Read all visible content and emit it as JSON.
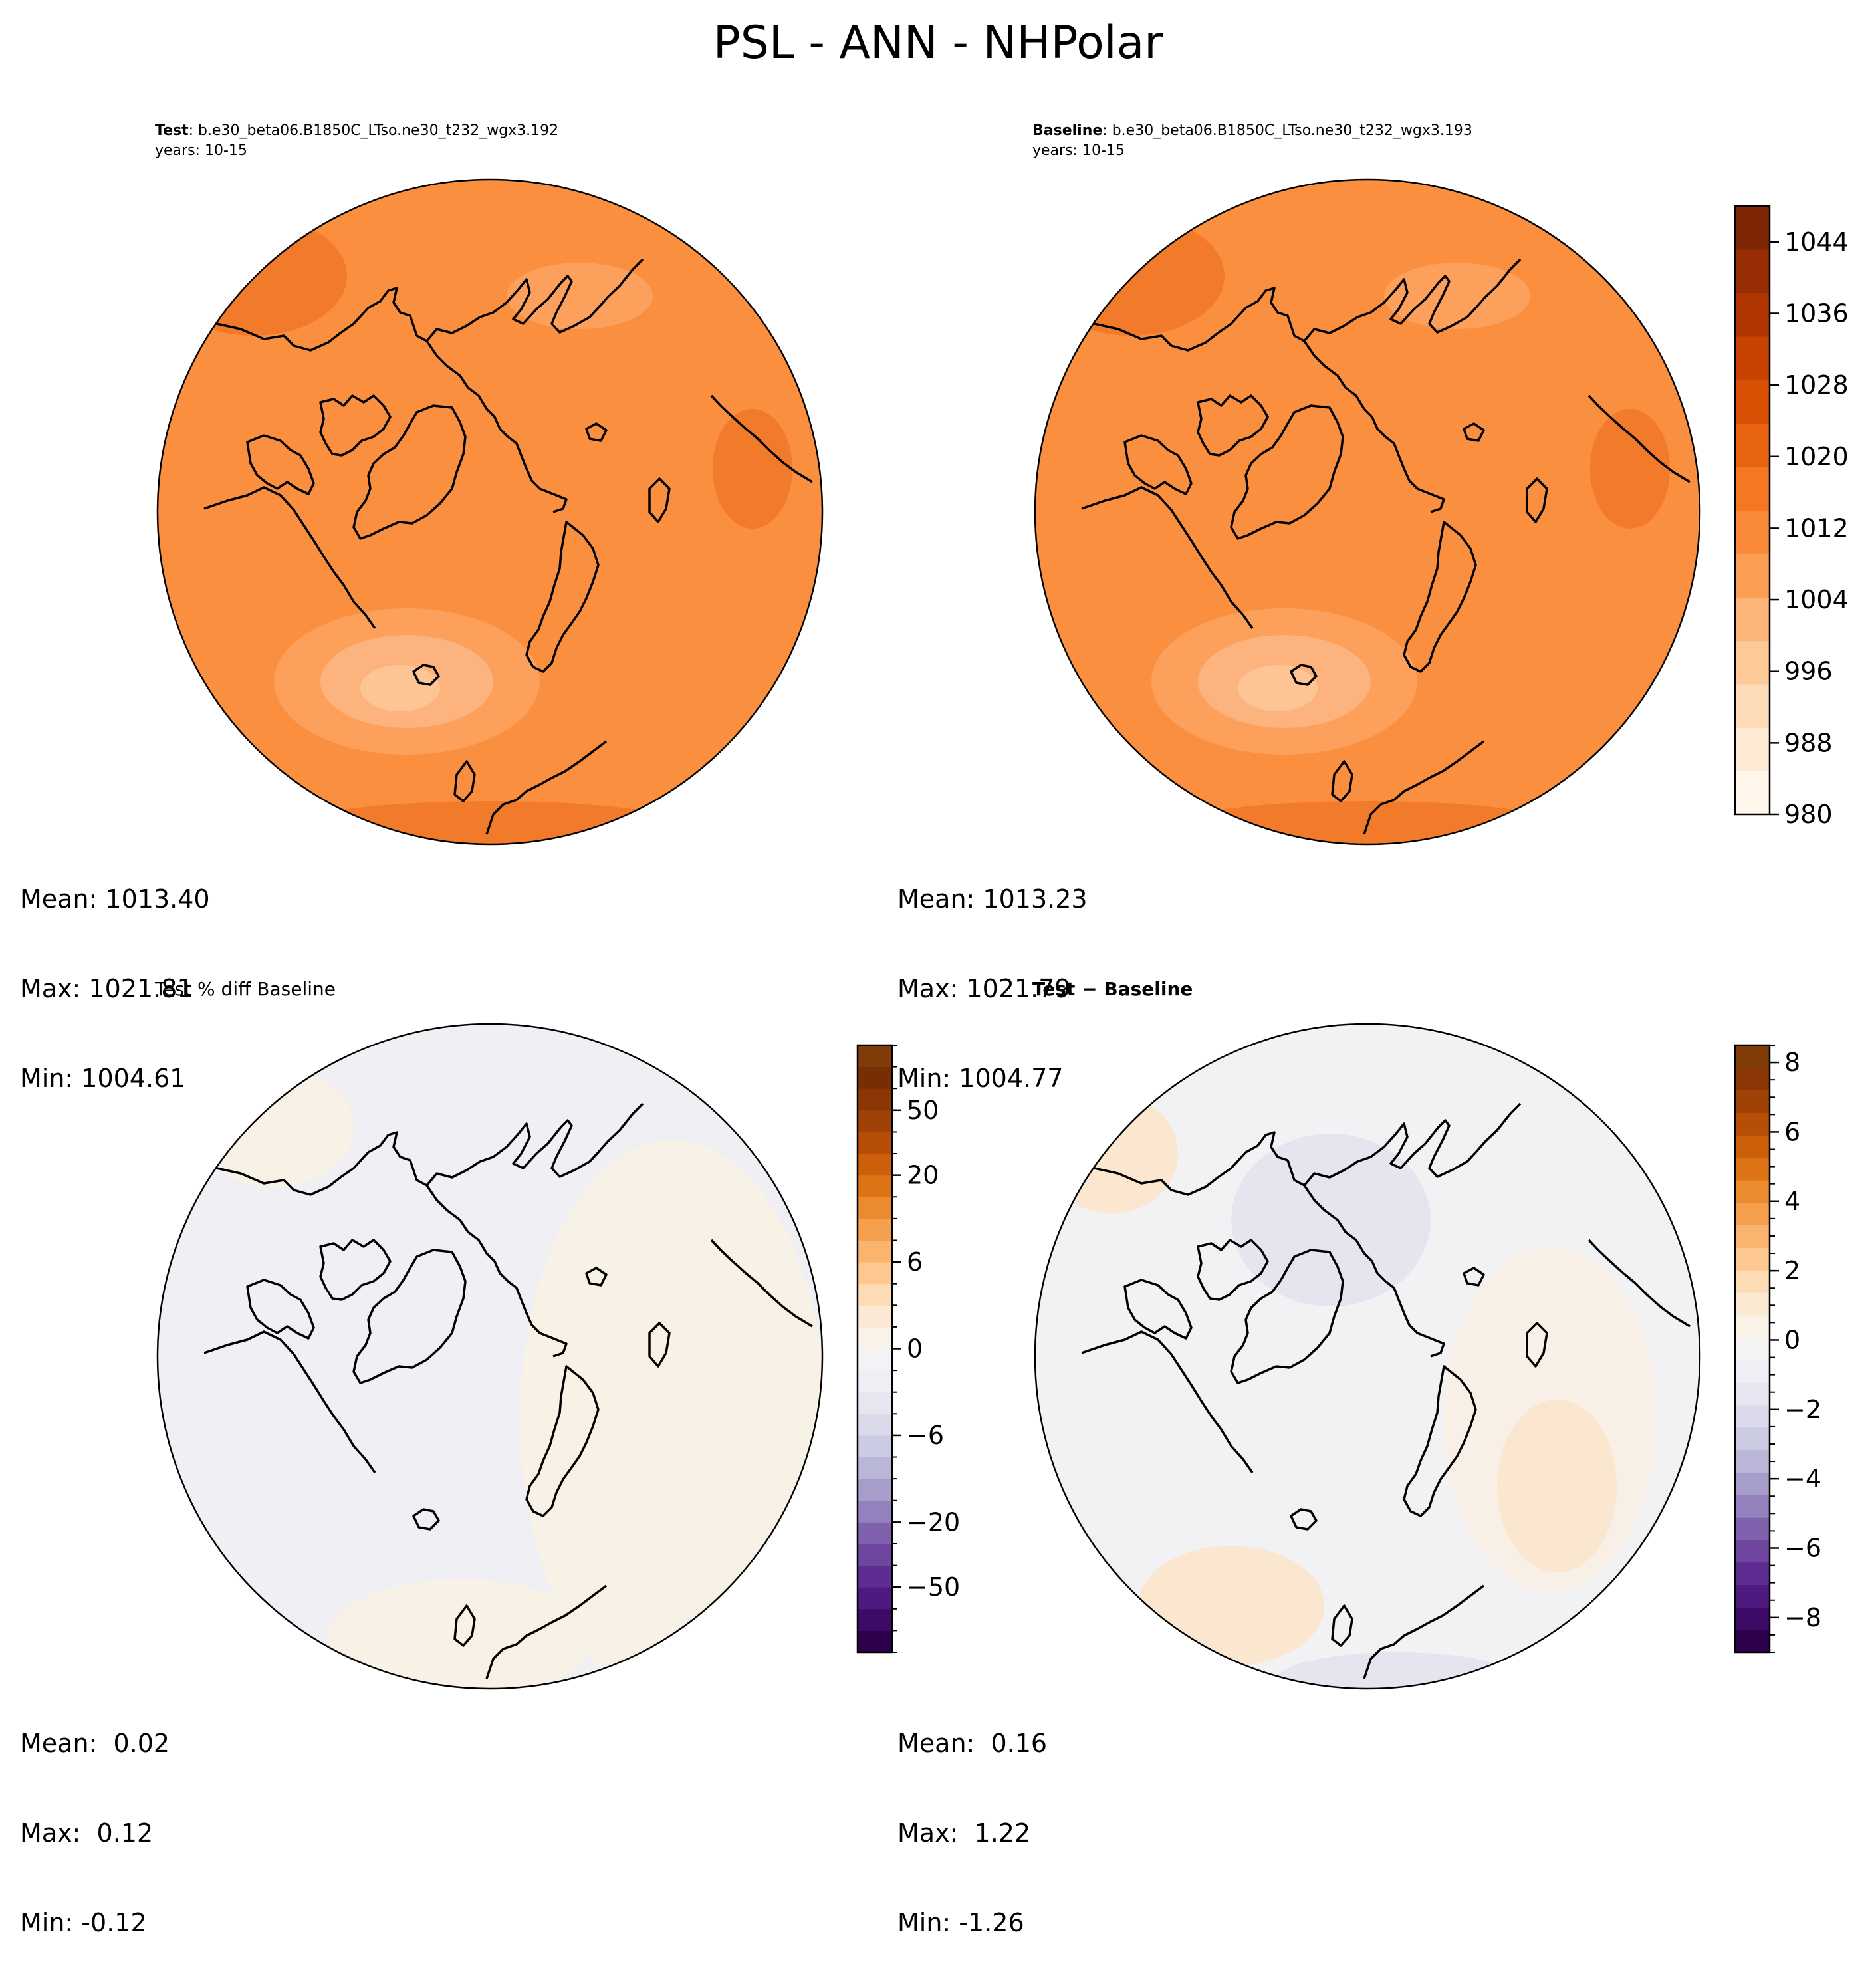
{
  "figure": {
    "title": "PSL - ANN - NHPolar"
  },
  "panels": [
    {
      "id": "test",
      "label_bold": "Test",
      "label_rest": ": b.e30_beta06.B1850C_LTso.ne30_t232_wgx3.192",
      "years": "years: 10-15",
      "stats": [
        "Mean: 1013.40",
        "Max: 1021.81",
        "Min: 1004.61"
      ],
      "fill_color": "#f98f3f",
      "region_colors": [
        "#f27a2b",
        "#fca05c",
        "#fdb37d",
        "#fdc593"
      ]
    },
    {
      "id": "baseline",
      "label_bold": "Baseline",
      "label_rest": ": b.e30_beta06.B1850C_LTso.ne30_t232_wgx3.193",
      "years": "years: 10-15",
      "stats": [
        "Mean: 1013.23",
        "Max: 1021.79",
        "Min: 1004.77"
      ],
      "fill_color": "#f98f3f",
      "region_colors": [
        "#f27a2b",
        "#fca05c",
        "#fdb37d",
        "#fdc593"
      ]
    },
    {
      "id": "pctdiff",
      "subtitle": "Test % diff Baseline",
      "stats": [
        "Mean:  0.02",
        "Max:  0.12",
        "Min: -0.12"
      ],
      "fill_color": "#f0f0f4",
      "region_colors": [
        "#f8f1e6",
        "#eeeef4"
      ]
    },
    {
      "id": "diff",
      "subtitle_bold": "Test − Baseline",
      "stats": [
        "Mean:  0.16",
        "Max:  1.22",
        "Min: -1.26"
      ],
      "fill_color": "#f2f2f5",
      "region_colors": [
        "#fbe7cf",
        "#e6e5ef",
        "#f8f0e6"
      ]
    }
  ],
  "colorbars": [
    {
      "id": "abs",
      "min": 980,
      "max": 1048,
      "ticks": [
        980,
        988,
        996,
        1004,
        1012,
        1020,
        1028,
        1036,
        1044
      ],
      "colors": [
        "#fff5eb",
        "#fee9d5",
        "#fddbb9",
        "#fdc997",
        "#fdb477",
        "#fd9e55",
        "#f98a3a",
        "#f57722",
        "#e96410",
        "#da5005",
        "#c84202",
        "#b13702",
        "#982d03",
        "#7f2704"
      ]
    },
    {
      "id": "pct",
      "levels": [
        -80,
        -70,
        -60,
        -50,
        -40,
        -30,
        -20,
        -15,
        -10,
        -8,
        -6,
        -4,
        -2,
        -1,
        0,
        1,
        2,
        4,
        6,
        8,
        10,
        15,
        20,
        30,
        40,
        50,
        60,
        70,
        80
      ],
      "ticks": [
        -50,
        -20,
        -6,
        0,
        6,
        20,
        50
      ],
      "colors": [
        "#2d004b",
        "#3d0b67",
        "#4e1a7f",
        "#5e2d91",
        "#6e459f",
        "#8061ad",
        "#9381bd",
        "#a69dca",
        "#b9b6d8",
        "#cbcbe3",
        "#dbdaeb",
        "#e7e6f0",
        "#efeef4",
        "#f3f2f5",
        "#f8f2e9",
        "#fbe9d3",
        "#fddbb5",
        "#fdc88f",
        "#fbb46d",
        "#f5a04e",
        "#eb8a2f",
        "#dc7416",
        "#cb5f0a",
        "#b74e07",
        "#a04106",
        "#8b3705",
        "#772e05",
        "#7f3b08"
      ]
    },
    {
      "id": "diff",
      "min": -9,
      "max": 8.5,
      "ticks": [
        -8,
        -6,
        -4,
        -2,
        0,
        2,
        4,
        6,
        8
      ],
      "colors": [
        "#2d004b",
        "#3d0b67",
        "#4e1a7f",
        "#5e2d91",
        "#6e459f",
        "#8061ad",
        "#9381bd",
        "#a69dca",
        "#b9b6d8",
        "#cbcbe3",
        "#dbdaeb",
        "#e7e6f0",
        "#efeef4",
        "#f3f2f5",
        "#f8f2e9",
        "#fbe9d3",
        "#fddbb5",
        "#fdc88f",
        "#fbb46d",
        "#f5a04e",
        "#eb8a2f",
        "#dc7416",
        "#cb5f0a",
        "#b74e07",
        "#a04106",
        "#8b3705",
        "#7f3b08"
      ]
    }
  ]
}
